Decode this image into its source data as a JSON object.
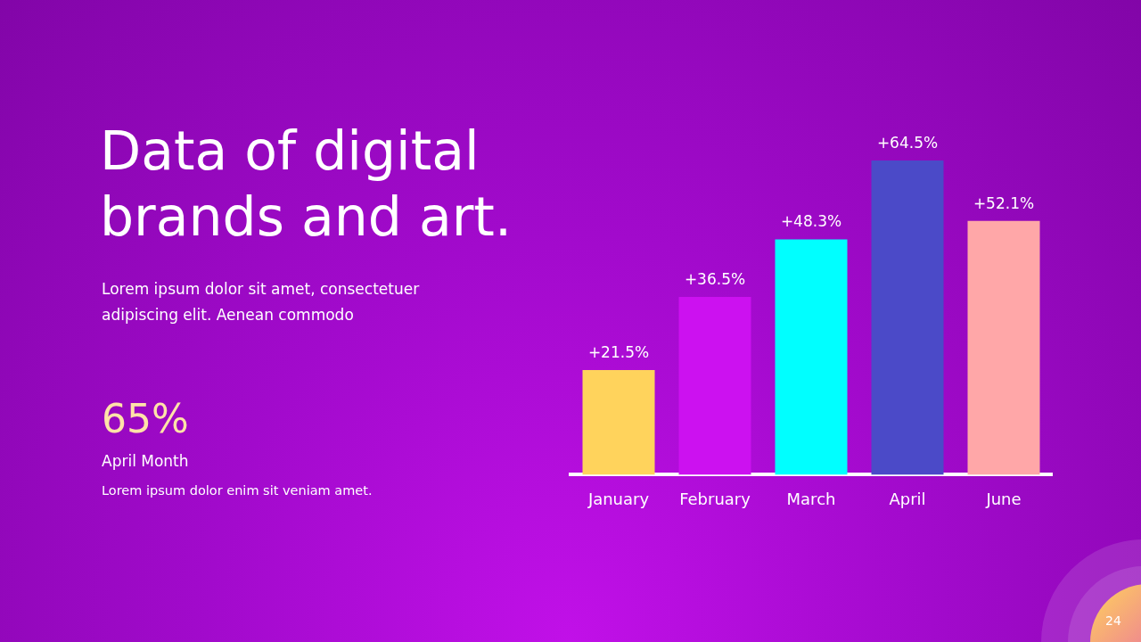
{
  "chart_data": {
    "type": "bar",
    "title": "Data of digital brands and art.",
    "subtitle": "Lorem ipsum dolor sit amet, consectetuer adipiscing elit. Aenean commodo",
    "categories": [
      "January",
      "February",
      "March",
      "April",
      "June"
    ],
    "values": [
      21.5,
      36.5,
      48.3,
      64.5,
      52.1
    ],
    "colors": [
      "#ffd35c",
      "#cc11f0",
      "#00ffff",
      "#4b4ac8",
      "#ffa7a8"
    ],
    "value_labels": [
      "+21.5%",
      "+36.5%",
      "+48.3%",
      "+64.5%",
      "+52.1%"
    ],
    "annotations": [
      "65%",
      "April Month",
      "Lorem ipsum dolor enim sit veniam amet.",
      "24"
    ],
    "grid": false,
    "legend": false
  }
}
